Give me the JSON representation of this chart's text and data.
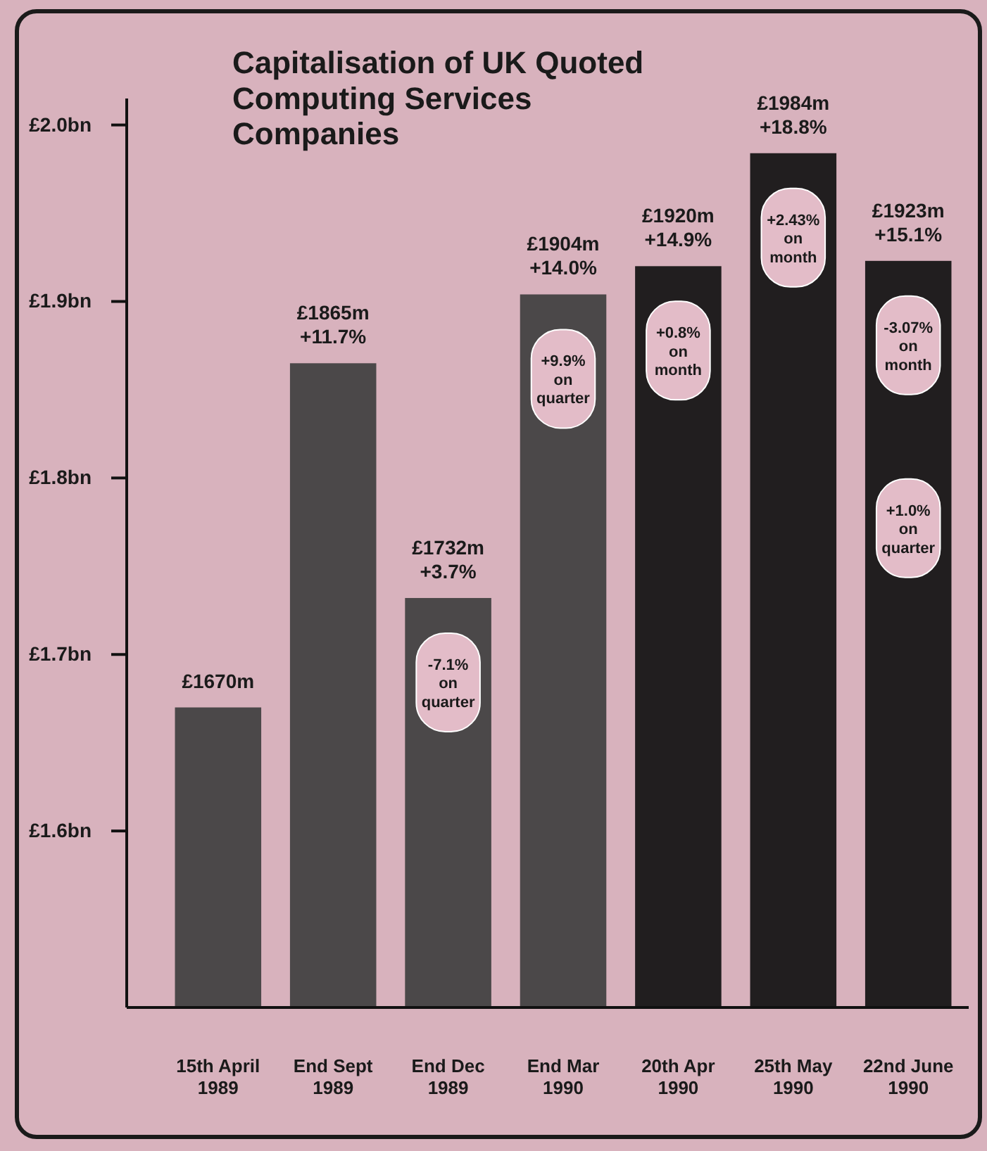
{
  "chart_data": {
    "type": "bar",
    "title": "Capitalisation of UK Quoted Computing Services Companies",
    "categories": [
      "15th April 1989",
      "End Sept 1989",
      "End Dec 1989",
      "End Mar 1990",
      "20th Apr 1990",
      "25th May 1990",
      "22nd June 1990"
    ],
    "values": [
      1.67,
      1.865,
      1.732,
      1.904,
      1.92,
      1.984,
      1.923
    ],
    "colors": [
      "#4b4849",
      "#4b4849",
      "#4b4849",
      "#4b4849",
      "#211e1f",
      "#211e1f",
      "#211e1f"
    ],
    "ylim": [
      1.5,
      2.015
    ],
    "yticks": [
      {
        "value": 1.6,
        "label": "£1.6bn"
      },
      {
        "value": 1.7,
        "label": "£1.7bn"
      },
      {
        "value": 1.8,
        "label": "£1.8bn"
      },
      {
        "value": 1.9,
        "label": "£1.9bn"
      },
      {
        "value": 2.0,
        "label": "£2.0bn"
      }
    ],
    "annotations": [
      {
        "text": "£1670m",
        "x": "15th April 1989",
        "y": 1.67
      },
      {
        "text": "£1865m",
        "x": "End Sept 1989",
        "y": 1.865
      },
      {
        "text": "+11.7%",
        "x": "End Sept 1989",
        "y": 1.865
      },
      {
        "text": "£1732m",
        "x": "End Dec 1989",
        "y": 1.732
      },
      {
        "text": "+3.7%",
        "x": "End Dec 1989",
        "y": 1.732
      },
      {
        "text": "£1904m",
        "x": "End Mar 1990",
        "y": 1.904
      },
      {
        "text": "+14.0%",
        "x": "End Mar 1990",
        "y": 1.904
      },
      {
        "text": "£1920m",
        "x": "20th Apr 1990",
        "y": 1.92
      },
      {
        "text": "+14.9%",
        "x": "20th Apr 1990",
        "y": 1.92
      },
      {
        "text": "£1984m",
        "x": "25th May 1990",
        "y": 1.984
      },
      {
        "text": "+18.8%",
        "x": "25th May 1990",
        "y": 1.984
      },
      {
        "text": "£1923m",
        "x": "22nd June 1990",
        "y": 1.923
      },
      {
        "text": "+15.1%",
        "x": "22nd June 1990",
        "y": 1.923
      },
      "-7.1% on quarter",
      "+9.9% on quarter",
      "+0.8% on month",
      "+2.43% on month",
      "-3.07% on month",
      "+1.0% on quarter"
    ]
  }
}
